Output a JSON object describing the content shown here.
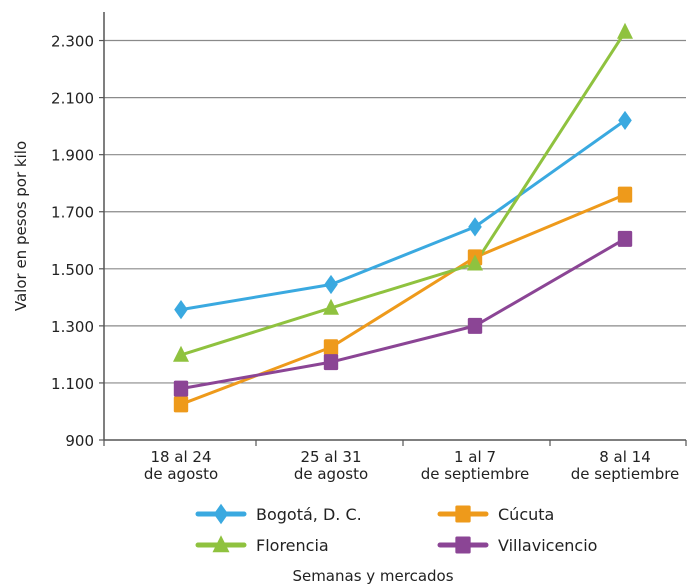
{
  "chart_data": {
    "type": "line",
    "categories": [
      [
        "18 al 24",
        "de agosto"
      ],
      [
        "25 al 31",
        "de agosto"
      ],
      [
        "1 al 7",
        "de septiembre"
      ],
      [
        "8 al 14",
        "de septiembre"
      ]
    ],
    "xlabel": "Semanas y mercados",
    "ylabel": "Valor en pesos por kilo",
    "ylim": [
      900,
      2400
    ],
    "yticks": [
      900,
      1100,
      1300,
      1500,
      1700,
      1900,
      2100,
      2300
    ],
    "ytick_labels": [
      "900",
      "1.100",
      "1.300",
      "1.500",
      "1.700",
      "1.900",
      "2.100",
      "2.300"
    ],
    "grid": "horizontal",
    "legend_position": "bottom",
    "series": [
      {
        "name": "Bogotá, D. C.",
        "marker": "diamond",
        "color": "#3aa9e0",
        "values": [
          1357,
          1445,
          1647,
          2020
        ]
      },
      {
        "name": "Cúcuta",
        "marker": "square",
        "color": "#ee9a1b",
        "values": [
          1025,
          1225,
          1540,
          1760
        ]
      },
      {
        "name": "Florencia",
        "marker": "triangle",
        "color": "#8fc23f",
        "values": [
          1198,
          1363,
          1518,
          2330
        ]
      },
      {
        "name": "Villavicencio",
        "marker": "square",
        "color": "#8b4595",
        "values": [
          1080,
          1173,
          1300,
          1605
        ]
      }
    ]
  }
}
